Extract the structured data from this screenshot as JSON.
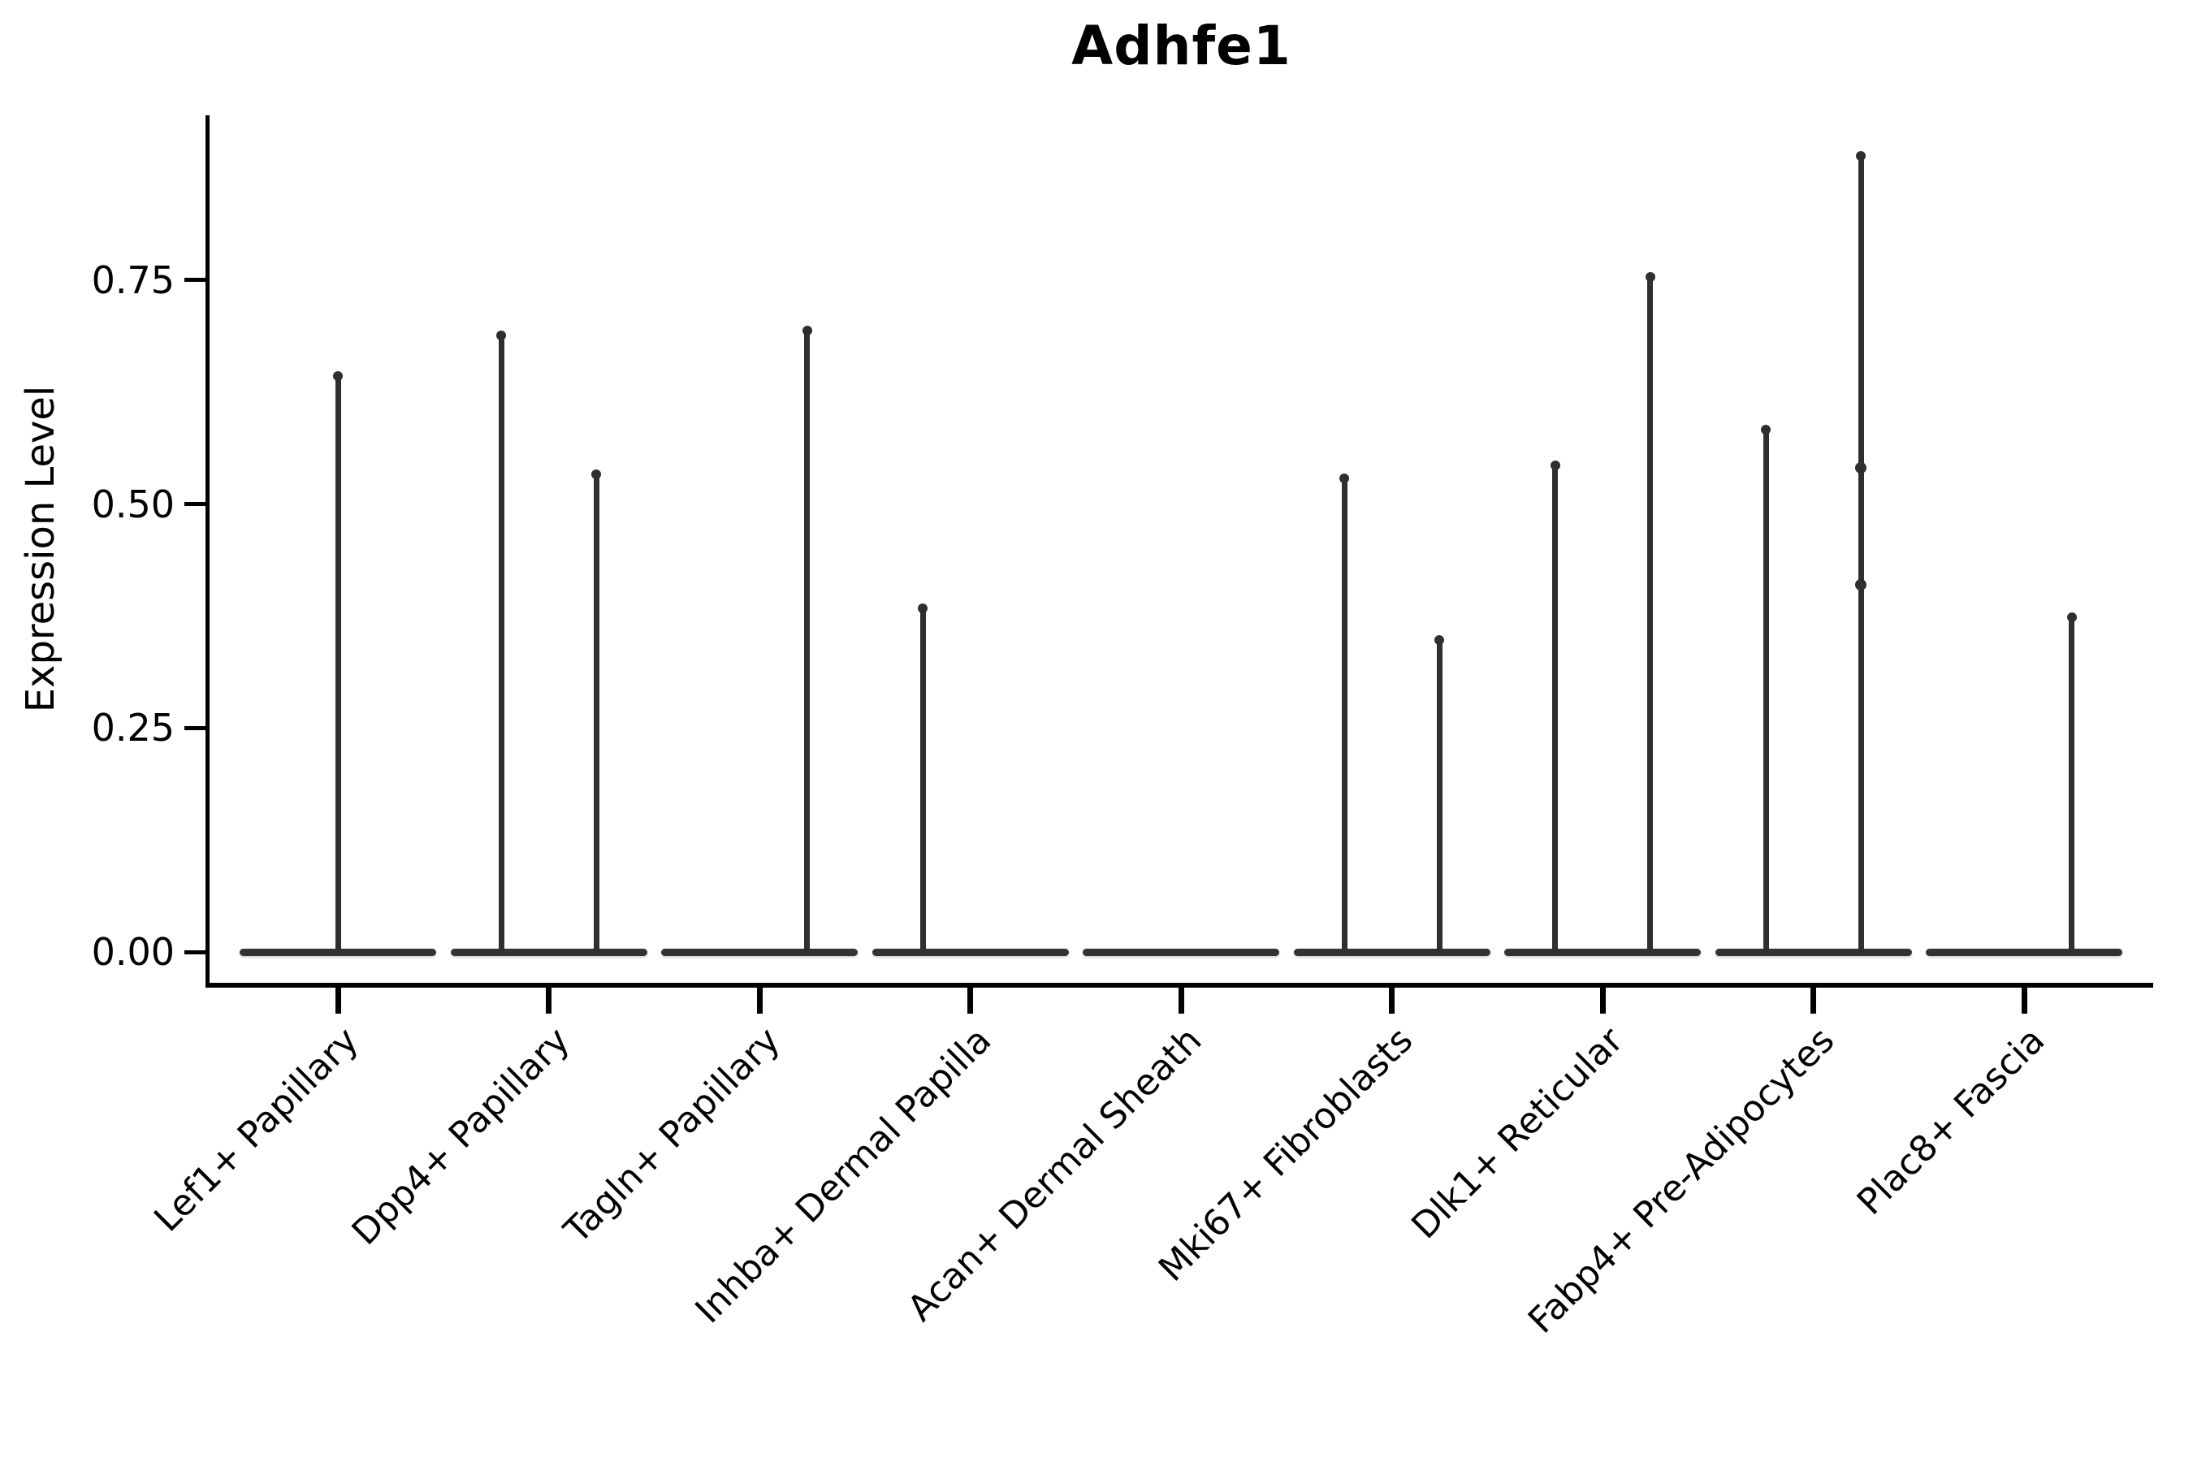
{
  "figure": {
    "background": "#ffffff",
    "violin_stroke_color": "#2f2f2f",
    "axis_color": "#000000",
    "text_color": "#000000"
  },
  "chart_data": {
    "type": "violin",
    "title": "Adhfe1",
    "xlabel": "",
    "ylabel": "Expression Level",
    "yticks": [
      "0.00",
      "0.25",
      "0.50",
      "0.75"
    ],
    "ytick_values": [
      0.0,
      0.25,
      0.5,
      0.75
    ],
    "ylim": [
      -0.031,
      0.936
    ],
    "grid": false,
    "legend": "none",
    "x_label_rotation_deg": 45,
    "categories": [
      "Lef1+ Papillary",
      "Dpp4+ Papillary",
      "Tagln+ Papillary",
      "Inhba+ Dermal Papilla",
      "Acan+ Dermal Sheath",
      "Mki67+ Fibroblasts",
      "Dlk1+ Reticular",
      "Fabp4+ Pre-Adipocytes",
      "Plac8+ Fascia"
    ],
    "violins": [
      {
        "category": "Lef1+ Papillary",
        "baseline_value": 0.0,
        "spikes": [
          {
            "pos": "center",
            "max": 0.645
          }
        ]
      },
      {
        "category": "Dpp4+ Papillary",
        "baseline_value": 0.0,
        "spikes": [
          {
            "pos": "left",
            "max": 0.69
          },
          {
            "pos": "right",
            "max": 0.535
          }
        ]
      },
      {
        "category": "Tagln+ Papillary",
        "baseline_value": 0.0,
        "spikes": [
          {
            "pos": "right",
            "max": 0.695
          }
        ]
      },
      {
        "category": "Inhba+ Dermal Papilla",
        "baseline_value": 0.0,
        "spikes": [
          {
            "pos": "left",
            "max": 0.385
          }
        ]
      },
      {
        "category": "Acan+ Dermal Sheath",
        "baseline_value": 0.0,
        "spikes": []
      },
      {
        "category": "Mki67+ Fibroblasts",
        "baseline_value": 0.0,
        "spikes": [
          {
            "pos": "left",
            "max": 0.53
          },
          {
            "pos": "right",
            "max": 0.35
          }
        ]
      },
      {
        "category": "Dlk1+ Reticular",
        "baseline_value": 0.0,
        "spikes": [
          {
            "pos": "left",
            "max": 0.545
          },
          {
            "pos": "right",
            "max": 0.755
          }
        ]
      },
      {
        "category": "Fabp4+ Pre-Adipocytes",
        "baseline_value": 0.0,
        "spikes": [
          {
            "pos": "left",
            "max": 0.585
          },
          {
            "pos": "right",
            "max": 0.89,
            "bumps": [
              0.54,
              0.41
            ]
          }
        ]
      },
      {
        "category": "Plac8+ Fascia",
        "baseline_value": 0.0,
        "spikes": [
          {
            "pos": "right",
            "max": 0.375
          }
        ]
      }
    ]
  }
}
